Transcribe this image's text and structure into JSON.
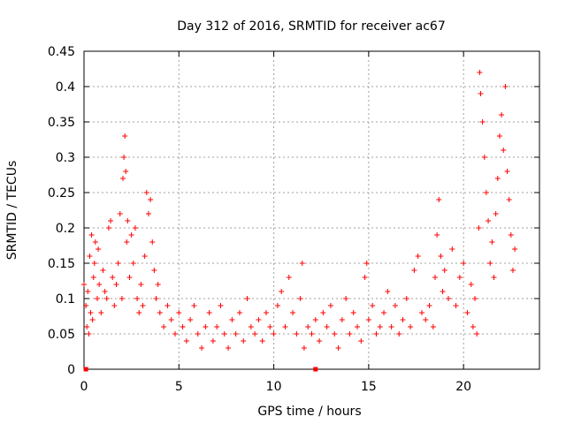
{
  "chart_data": {
    "type": "scatter",
    "title": "Day 312 of 2016, SRMTID for receiver ac67",
    "xlabel": "GPS time / hours",
    "ylabel": "SRMTID / TECUs",
    "xlim": [
      0,
      24
    ],
    "ylim": [
      0,
      0.45
    ],
    "xticks": [
      0,
      5,
      10,
      15,
      20
    ],
    "xtick_labels": [
      "0",
      "5",
      "10",
      "15",
      "20"
    ],
    "yticks": [
      0,
      0.05,
      0.1,
      0.15,
      0.2,
      0.25,
      0.3,
      0.35,
      0.4,
      0.45
    ],
    "ytick_labels": [
      "0",
      "0.05",
      "0.1",
      "0.15",
      "0.2",
      "0.25",
      "0.3",
      "0.35",
      "0.4",
      "0.45"
    ],
    "grid": true,
    "marker": "+",
    "color": "#ff0000",
    "series": [
      {
        "name": "SRMTID",
        "points": [
          [
            0.0,
            0.12
          ],
          [
            0.1,
            0.09
          ],
          [
            0.15,
            0.06
          ],
          [
            0.2,
            0.11
          ],
          [
            0.25,
            0.05
          ],
          [
            0.3,
            0.16
          ],
          [
            0.35,
            0.08
          ],
          [
            0.4,
            0.19
          ],
          [
            0.45,
            0.07
          ],
          [
            0.5,
            0.13
          ],
          [
            0.55,
            0.15
          ],
          [
            0.6,
            0.18
          ],
          [
            0.7,
            0.1
          ],
          [
            0.75,
            0.17
          ],
          [
            0.8,
            0.12
          ],
          [
            0.9,
            0.08
          ],
          [
            1.0,
            0.14
          ],
          [
            1.1,
            0.11
          ],
          [
            1.2,
            0.1
          ],
          [
            1.3,
            0.2
          ],
          [
            1.4,
            0.21
          ],
          [
            1.5,
            0.13
          ],
          [
            1.6,
            0.09
          ],
          [
            1.7,
            0.12
          ],
          [
            1.8,
            0.15
          ],
          [
            1.9,
            0.22
          ],
          [
            2.0,
            0.1
          ],
          [
            2.05,
            0.27
          ],
          [
            2.1,
            0.3
          ],
          [
            2.15,
            0.33
          ],
          [
            2.2,
            0.28
          ],
          [
            2.25,
            0.18
          ],
          [
            2.3,
            0.21
          ],
          [
            2.4,
            0.13
          ],
          [
            2.5,
            0.19
          ],
          [
            2.6,
            0.15
          ],
          [
            2.7,
            0.2
          ],
          [
            2.8,
            0.1
          ],
          [
            2.9,
            0.08
          ],
          [
            3.0,
            0.12
          ],
          [
            3.1,
            0.09
          ],
          [
            3.2,
            0.16
          ],
          [
            3.3,
            0.25
          ],
          [
            3.4,
            0.22
          ],
          [
            3.5,
            0.24
          ],
          [
            3.6,
            0.18
          ],
          [
            3.7,
            0.14
          ],
          [
            3.8,
            0.1
          ],
          [
            3.9,
            0.12
          ],
          [
            4.0,
            0.08
          ],
          [
            4.2,
            0.06
          ],
          [
            4.4,
            0.09
          ],
          [
            4.6,
            0.07
          ],
          [
            4.8,
            0.05
          ],
          [
            5.0,
            0.08
          ],
          [
            5.2,
            0.06
          ],
          [
            5.4,
            0.04
          ],
          [
            5.6,
            0.07
          ],
          [
            5.8,
            0.09
          ],
          [
            6.0,
            0.05
          ],
          [
            6.2,
            0.03
          ],
          [
            6.4,
            0.06
          ],
          [
            6.6,
            0.08
          ],
          [
            6.8,
            0.04
          ],
          [
            7.0,
            0.06
          ],
          [
            7.2,
            0.09
          ],
          [
            7.4,
            0.05
          ],
          [
            7.6,
            0.03
          ],
          [
            7.8,
            0.07
          ],
          [
            8.0,
            0.05
          ],
          [
            8.2,
            0.08
          ],
          [
            8.4,
            0.04
          ],
          [
            8.6,
            0.1
          ],
          [
            8.8,
            0.06
          ],
          [
            9.0,
            0.05
          ],
          [
            9.2,
            0.07
          ],
          [
            9.4,
            0.04
          ],
          [
            9.6,
            0.08
          ],
          [
            9.8,
            0.06
          ],
          [
            10.0,
            0.05
          ],
          [
            10.2,
            0.09
          ],
          [
            10.4,
            0.11
          ],
          [
            10.6,
            0.06
          ],
          [
            10.8,
            0.13
          ],
          [
            11.0,
            0.08
          ],
          [
            11.2,
            0.05
          ],
          [
            11.4,
            0.1
          ],
          [
            11.5,
            0.15
          ],
          [
            11.6,
            0.03
          ],
          [
            11.8,
            0.06
          ],
          [
            12.0,
            0.05
          ],
          [
            12.2,
            0.07
          ],
          [
            12.4,
            0.04
          ],
          [
            12.6,
            0.08
          ],
          [
            12.8,
            0.06
          ],
          [
            13.0,
            0.09
          ],
          [
            13.2,
            0.05
          ],
          [
            13.4,
            0.03
          ],
          [
            13.6,
            0.07
          ],
          [
            13.8,
            0.1
          ],
          [
            14.0,
            0.05
          ],
          [
            14.2,
            0.08
          ],
          [
            14.4,
            0.06
          ],
          [
            14.6,
            0.04
          ],
          [
            14.8,
            0.13
          ],
          [
            14.9,
            0.15
          ],
          [
            15.0,
            0.07
          ],
          [
            15.2,
            0.09
          ],
          [
            15.4,
            0.05
          ],
          [
            15.6,
            0.06
          ],
          [
            15.8,
            0.08
          ],
          [
            16.0,
            0.11
          ],
          [
            16.2,
            0.06
          ],
          [
            16.4,
            0.09
          ],
          [
            16.6,
            0.05
          ],
          [
            16.8,
            0.07
          ],
          [
            17.0,
            0.1
          ],
          [
            17.2,
            0.06
          ],
          [
            17.4,
            0.14
          ],
          [
            17.6,
            0.16
          ],
          [
            17.8,
            0.08
          ],
          [
            18.0,
            0.07
          ],
          [
            18.2,
            0.09
          ],
          [
            18.4,
            0.06
          ],
          [
            18.5,
            0.13
          ],
          [
            18.6,
            0.19
          ],
          [
            18.7,
            0.24
          ],
          [
            18.8,
            0.16
          ],
          [
            18.9,
            0.11
          ],
          [
            19.0,
            0.14
          ],
          [
            19.2,
            0.1
          ],
          [
            19.4,
            0.17
          ],
          [
            19.6,
            0.09
          ],
          [
            19.8,
            0.13
          ],
          [
            20.0,
            0.15
          ],
          [
            20.2,
            0.08
          ],
          [
            20.4,
            0.12
          ],
          [
            20.5,
            0.06
          ],
          [
            20.6,
            0.1
          ],
          [
            20.7,
            0.05
          ],
          [
            20.8,
            0.2
          ],
          [
            20.85,
            0.42
          ],
          [
            20.9,
            0.39
          ],
          [
            21.0,
            0.35
          ],
          [
            21.1,
            0.3
          ],
          [
            21.2,
            0.25
          ],
          [
            21.3,
            0.21
          ],
          [
            21.4,
            0.15
          ],
          [
            21.5,
            0.18
          ],
          [
            21.6,
            0.13
          ],
          [
            21.7,
            0.22
          ],
          [
            21.8,
            0.27
          ],
          [
            21.9,
            0.33
          ],
          [
            22.0,
            0.36
          ],
          [
            22.1,
            0.31
          ],
          [
            22.2,
            0.4
          ],
          [
            22.3,
            0.28
          ],
          [
            22.4,
            0.24
          ],
          [
            22.5,
            0.19
          ],
          [
            22.6,
            0.14
          ],
          [
            22.7,
            0.17
          ]
        ]
      }
    ],
    "zero_markers": [
      0.1,
      12.2
    ]
  }
}
